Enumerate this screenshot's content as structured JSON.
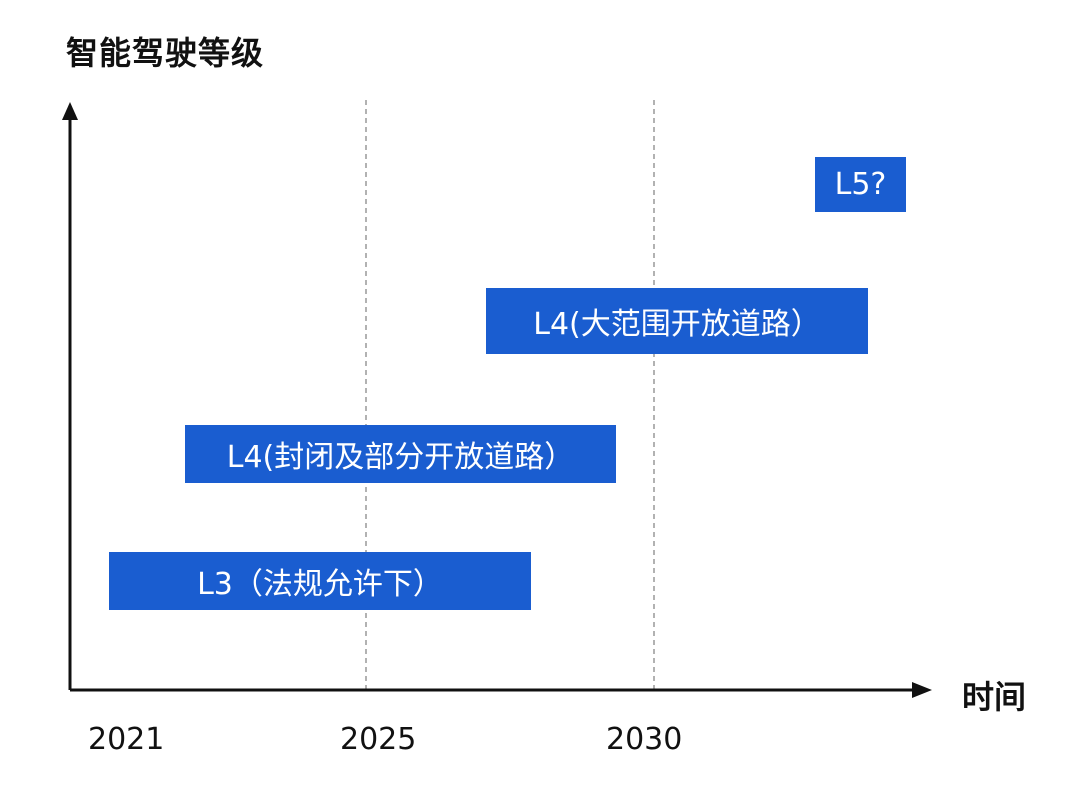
{
  "axes": {
    "y_title": "智能驾驶等级",
    "x_title": "时间"
  },
  "ticks": [
    "2021",
    "2025",
    "2030"
  ],
  "levels": [
    {
      "label": "L3（法规允许下）"
    },
    {
      "label": "L4(封闭及部分开放道路）"
    },
    {
      "label": "L4(大范围开放道路）"
    },
    {
      "label": "L5?"
    }
  ],
  "colors": {
    "bar": "#1a5dd0",
    "axis": "#111111",
    "grid": "#888888"
  }
}
